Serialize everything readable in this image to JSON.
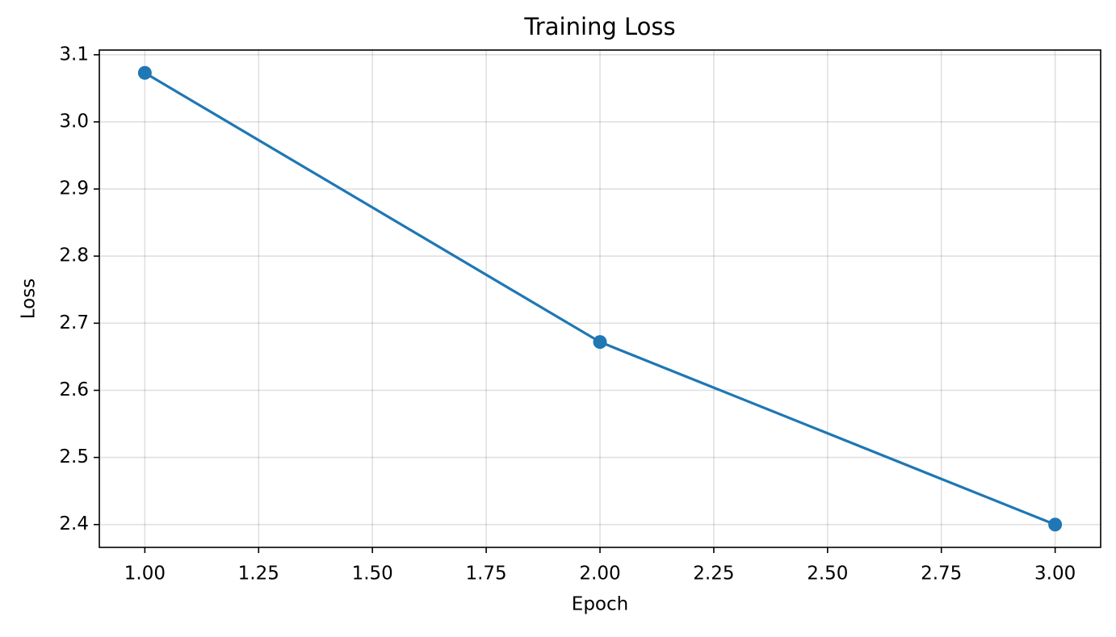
{
  "chart_data": {
    "type": "line",
    "title": "Training Loss",
    "x_label": "Epoch",
    "y_label": "Loss",
    "x": [
      1,
      2,
      3
    ],
    "values": [
      3.073,
      2.672,
      2.4
    ],
    "color": "#1f77b4",
    "xlim": [
      0.9,
      3.1
    ],
    "xticks": [
      {
        "value": 1,
        "label": "1.00"
      },
      {
        "value": 1.25,
        "label": "1.25"
      },
      {
        "value": 1.5,
        "label": "1.50"
      },
      {
        "value": 1.75,
        "label": "1.75"
      },
      {
        "value": 2,
        "label": "2.00"
      },
      {
        "value": 2.25,
        "label": "2.25"
      },
      {
        "value": 2.5,
        "label": "2.50"
      },
      {
        "value": 2.75,
        "label": "2.75"
      },
      {
        "value": 3,
        "label": "3.00"
      }
    ],
    "ylim": [
      2.366,
      3.107
    ],
    "yticks": [
      2.4,
      2.5,
      2.6,
      2.7,
      2.8,
      2.9,
      {
        "value": 3,
        "label": "3.0"
      },
      3.1
    ],
    "grid": true
  }
}
